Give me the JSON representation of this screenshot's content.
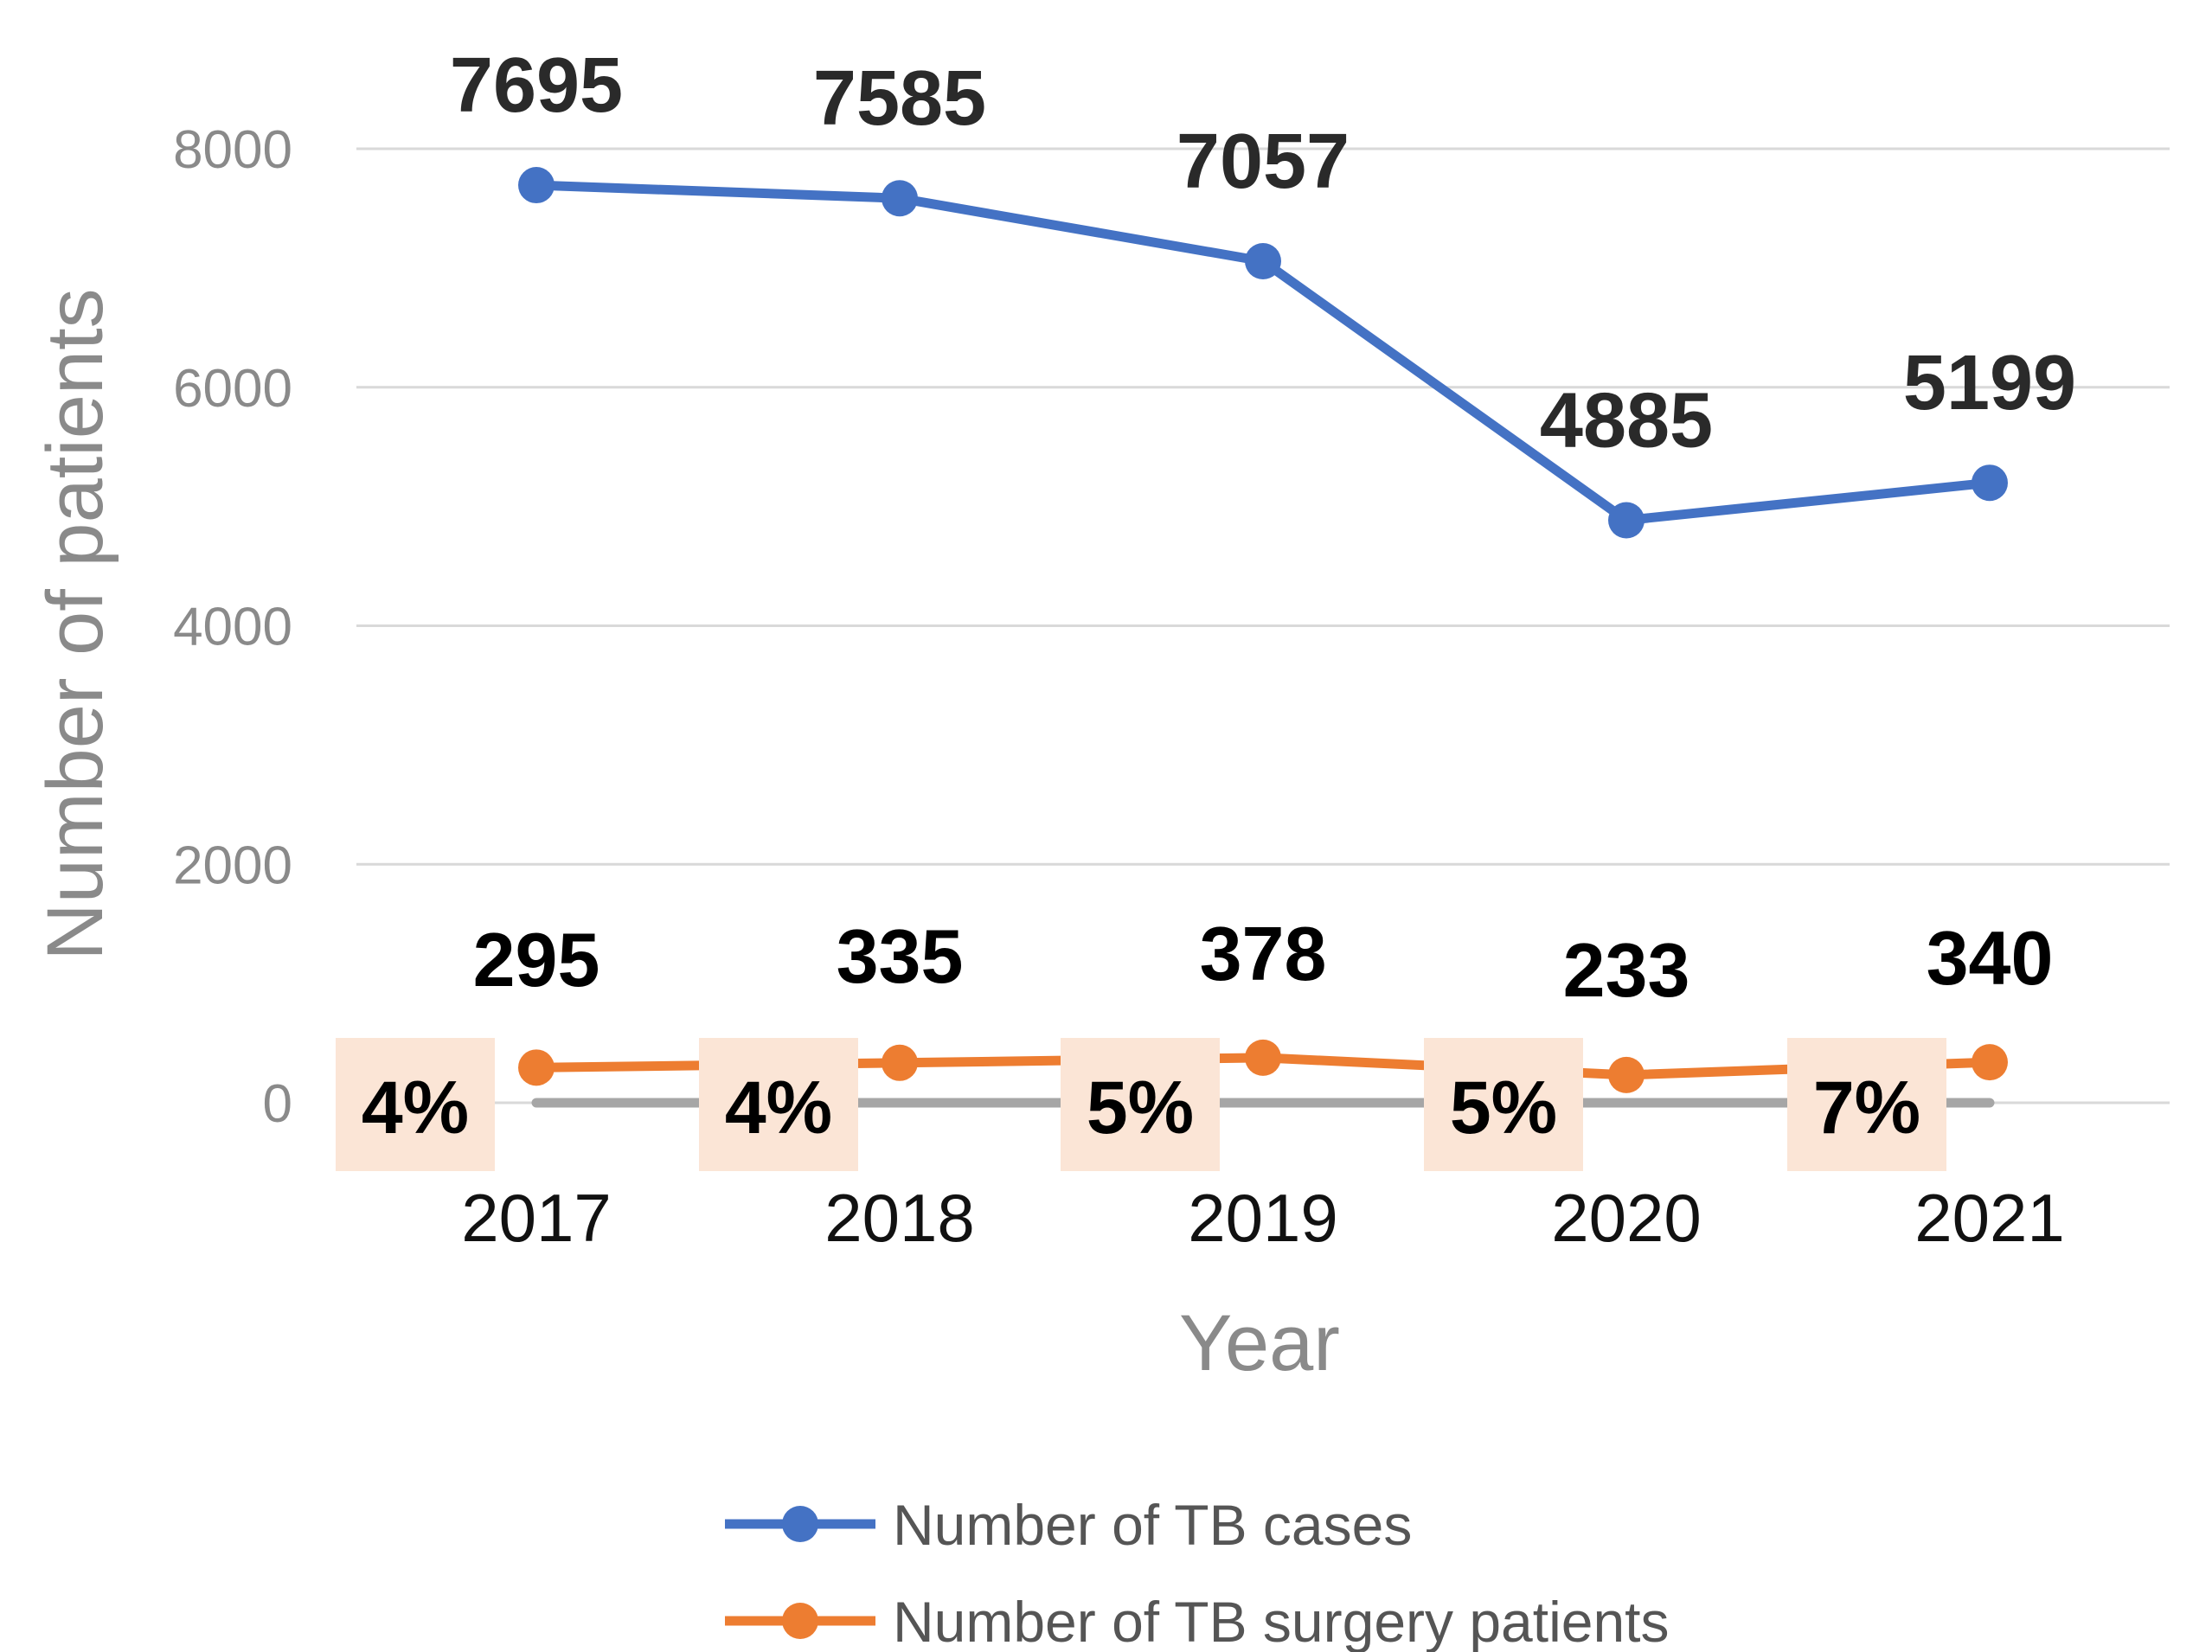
{
  "chart_data": {
    "type": "line",
    "title": "",
    "xlabel": "Year",
    "ylabel": "Number of patients",
    "categories": [
      "2017",
      "2018",
      "2019",
      "2020",
      "2021"
    ],
    "y_ticks": [
      "8000",
      "6000",
      "4000",
      "2000",
      "0"
    ],
    "ylim": [
      0,
      8000
    ],
    "grid": true,
    "series": [
      {
        "name": "Number of TB cases",
        "color": "#4472C4",
        "values": [
          7695,
          7585,
          7057,
          4885,
          5199
        ],
        "labels": [
          "7695",
          "7585",
          "7057",
          "4885",
          "5199"
        ]
      },
      {
        "name": "Number of TB surgery patients",
        "color": "#ED7D31",
        "values": [
          295,
          335,
          378,
          233,
          340
        ],
        "labels": [
          "295",
          "335",
          "378",
          "233",
          "340"
        ]
      }
    ],
    "percent_labels": [
      "4%",
      "4%",
      "5%",
      "5%",
      "7%"
    ],
    "percent_box_color": "#FBE5D6",
    "legend_position": "bottom"
  }
}
